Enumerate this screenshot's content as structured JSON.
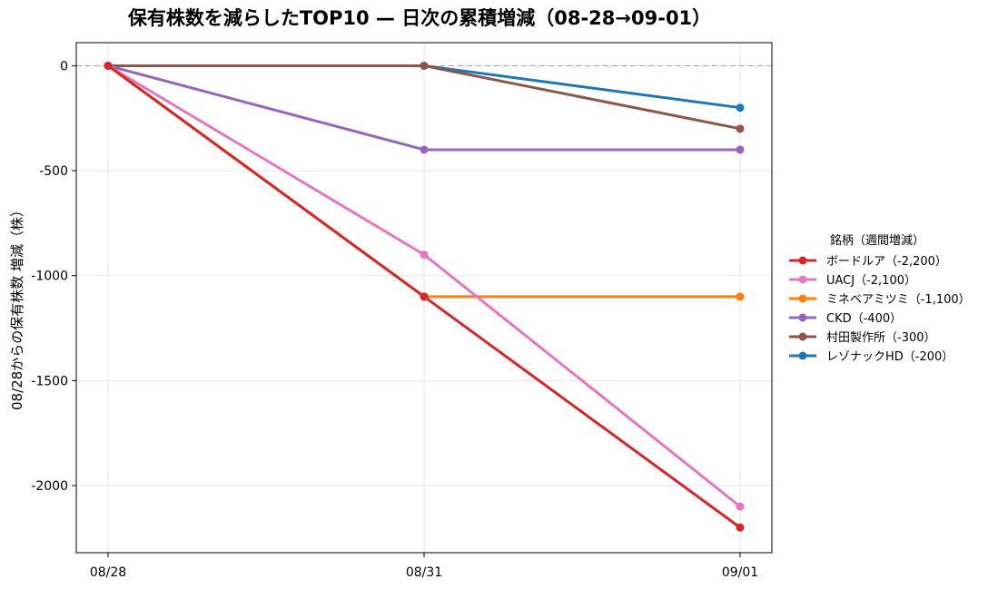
{
  "chart_data": {
    "type": "line",
    "title": "保有株数を減らしたTOP10 — 日次の累積増減（08-28→09-01）",
    "xlabel": "",
    "ylabel": "08/28からの保有株数 増減（株）",
    "categories": [
      "08/28",
      "08/31",
      "09/01"
    ],
    "ylim": [
      -2320,
      110
    ],
    "yticks": [
      0,
      -500,
      -1000,
      -1500,
      -2000
    ],
    "grid": true,
    "zero_line": "dashed",
    "legend_title": "銘柄（週間増減）",
    "legend_position": "right",
    "series": [
      {
        "name": "ボードルア（-2,200）",
        "color": "#d62728",
        "values": [
          0,
          -1100,
          -2200
        ]
      },
      {
        "name": "UACJ（-2,100）",
        "color": "#e377c2",
        "values": [
          0,
          -900,
          -2100
        ]
      },
      {
        "name": "ミネベアミツミ（-1,100）",
        "color": "#ff7f0e",
        "values": [
          0,
          -1100,
          -1100
        ]
      },
      {
        "name": "CKD（-400）",
        "color": "#9467bd",
        "values": [
          0,
          -400,
          -400
        ]
      },
      {
        "name": "村田製作所（-300）",
        "color": "#8c564b",
        "values": [
          0,
          0,
          -300
        ]
      },
      {
        "name": "レゾナックHD（-200）",
        "color": "#1f77b4",
        "values": [
          0,
          0,
          -200
        ]
      }
    ]
  }
}
